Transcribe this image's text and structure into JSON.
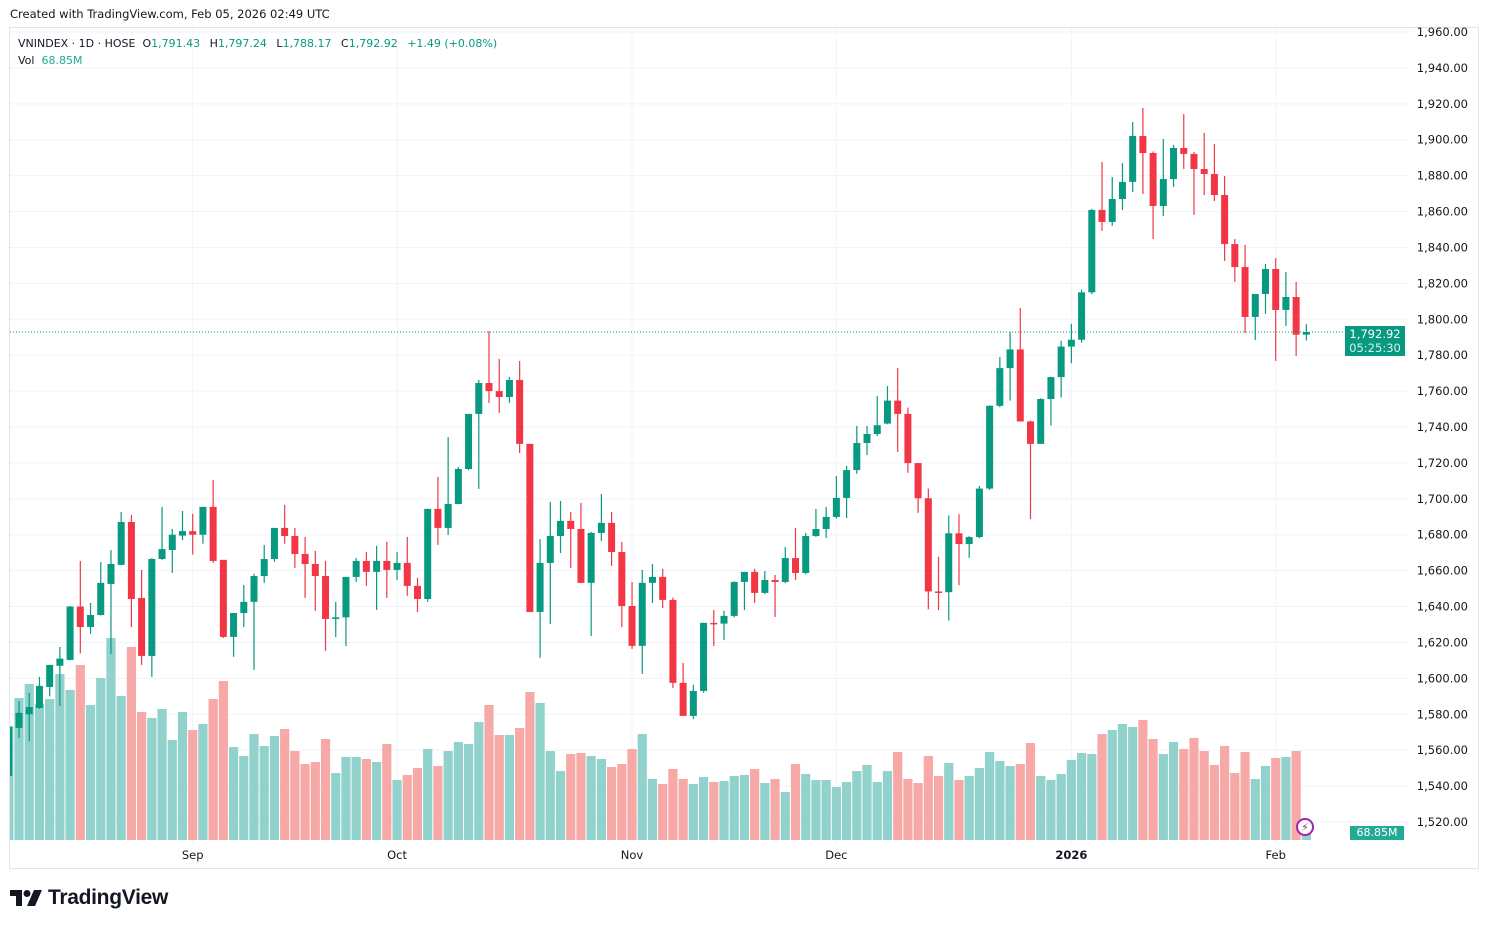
{
  "created_text": "Created with TradingView.com, Feb 05, 2026 02:49 UTC",
  "legend": {
    "symbol": "VNINDEX · 1D · HOSE",
    "o_label": "O",
    "o": "1,791.43",
    "h_label": "H",
    "h": "1,797.24",
    "l_label": "L",
    "l": "1,788.17",
    "c_label": "C",
    "c": "1,792.92",
    "change": "+1.49 (+0.08%)",
    "vol_label": "Vol",
    "vol": "68.85M"
  },
  "price_label": {
    "price": "1,792.92",
    "countdown": "05:25:30"
  },
  "volume_label": "68.85M",
  "logo_text": "TradingView",
  "colors": {
    "up": "#089981",
    "down": "#F23645",
    "vol_up": "#92d2cc",
    "vol_down": "#f7a9a7",
    "grid": "#f0f3fa",
    "alert_icon": "#9c27b0"
  },
  "chart_data": {
    "type": "candlestick",
    "title": "",
    "ylim": [
      1520,
      1960
    ],
    "grid": true,
    "y_ticks": [
      "1,960.00",
      "1,940.00",
      "1,920.00",
      "1,900.00",
      "1,880.00",
      "1,860.00",
      "1,840.00",
      "1,820.00",
      "1,800.00",
      "1,780.00",
      "1,760.00",
      "1,740.00",
      "1,720.00",
      "1,700.00",
      "1,680.00",
      "1,660.00",
      "1,640.00",
      "1,620.00",
      "1,600.00",
      "1,580.00",
      "1,560.00",
      "1,540.00",
      "1,520.00"
    ],
    "y_tick_values": [
      1960,
      1940,
      1920,
      1900,
      1880,
      1860,
      1840,
      1820,
      1800,
      1780,
      1760,
      1740,
      1720,
      1700,
      1680,
      1660,
      1640,
      1620,
      1600,
      1580,
      1560,
      1540,
      1520
    ],
    "x_ticks": [
      {
        "label": "Sep",
        "bar": 18,
        "bold": false
      },
      {
        "label": "Oct",
        "bar": 38,
        "bold": false
      },
      {
        "label": "Nov",
        "bar": 61,
        "bold": false
      },
      {
        "label": "Dec",
        "bar": 81,
        "bold": false
      },
      {
        "label": "2026",
        "bar": 104,
        "bold": true
      },
      {
        "label": "Feb",
        "bar": 124,
        "bold": false
      }
    ],
    "last_close": 1792.92,
    "volume_unit": "M",
    "ohlcv": [
      [
        1545.7,
        1574.0,
        1545.0,
        1573.0,
        1140
      ],
      [
        1572.4,
        1587.4,
        1566.8,
        1580.8,
        1420
      ],
      [
        1580.0,
        1592.0,
        1565.0,
        1584.0,
        1560
      ],
      [
        1583.5,
        1600.8,
        1583.0,
        1595.8,
        1360
      ],
      [
        1595.2,
        1607.5,
        1590.0,
        1607.5,
        1410
      ],
      [
        1607.0,
        1617.5,
        1584.6,
        1611.0,
        1660
      ],
      [
        1610.3,
        1640.3,
        1610.0,
        1640.0,
        1500
      ],
      [
        1640.0,
        1665.4,
        1614.0,
        1628.6,
        1750
      ],
      [
        1628.6,
        1642.0,
        1624.8,
        1635.3,
        1350
      ],
      [
        1635.3,
        1664.8,
        1635.0,
        1653.2,
        1620
      ],
      [
        1652.6,
        1671.5,
        1613.6,
        1663.7,
        2020
      ],
      [
        1663.2,
        1692.7,
        1663.0,
        1687.1,
        1440
      ],
      [
        1687.1,
        1691.0,
        1628.6,
        1644.2,
        1930
      ],
      [
        1644.8,
        1660.4,
        1607.5,
        1612.5,
        1280
      ],
      [
        1612.5,
        1667.0,
        1600.8,
        1666.5,
        1220
      ],
      [
        1666.5,
        1695.5,
        1666.0,
        1672.0,
        1310
      ],
      [
        1671.5,
        1683.2,
        1658.7,
        1680.0,
        1000
      ],
      [
        1679.5,
        1693.2,
        1677.0,
        1682.0,
        1280
      ],
      [
        1682.0,
        1691.6,
        1669.0,
        1680.0,
        1100
      ],
      [
        1680.0,
        1695.5,
        1675.0,
        1695.5,
        1160
      ],
      [
        1695.5,
        1710.5,
        1664.3,
        1665.4,
        1410
      ],
      [
        1666.0,
        1666.0,
        1622.5,
        1623.1,
        1590
      ],
      [
        1623.1,
        1636.4,
        1612.0,
        1636.4,
        930
      ],
      [
        1636.4,
        1652.0,
        1628.6,
        1642.6,
        840
      ],
      [
        1642.6,
        1658.2,
        1604.7,
        1657.0,
        1060
      ],
      [
        1657.0,
        1674.3,
        1653.2,
        1666.5,
        940
      ],
      [
        1666.5,
        1683.8,
        1665.0,
        1683.8,
        1040
      ],
      [
        1683.8,
        1696.6,
        1675.0,
        1679.3,
        1110
      ],
      [
        1679.3,
        1683.8,
        1661.5,
        1669.3,
        890
      ],
      [
        1669.3,
        1678.8,
        1644.8,
        1663.7,
        760
      ],
      [
        1663.7,
        1671.0,
        1637.6,
        1657.0,
        780
      ],
      [
        1657.0,
        1665.4,
        1615.3,
        1633.1,
        1010
      ],
      [
        1633.1,
        1642.6,
        1623.0,
        1634.0,
        670
      ],
      [
        1634.0,
        1656.5,
        1618.0,
        1656.5,
        830
      ],
      [
        1656.5,
        1667.0,
        1653.7,
        1665.4,
        830
      ],
      [
        1665.4,
        1670.4,
        1651.5,
        1659.3,
        810
      ],
      [
        1659.3,
        1673.8,
        1638.1,
        1665.4,
        780
      ],
      [
        1665.4,
        1676.0,
        1644.8,
        1660.4,
        960
      ],
      [
        1660.4,
        1670.4,
        1654.8,
        1664.3,
        600
      ],
      [
        1664.3,
        1678.8,
        1646.0,
        1651.5,
        650
      ],
      [
        1651.5,
        1656.0,
        1637.0,
        1644.2,
        720
      ],
      [
        1644.2,
        1694.4,
        1642.6,
        1694.4,
        910
      ],
      [
        1694.4,
        1712.2,
        1674.3,
        1683.8,
        740
      ],
      [
        1683.8,
        1734.4,
        1679.9,
        1697.1,
        890
      ],
      [
        1697.1,
        1717.7,
        1697.0,
        1716.6,
        980
      ],
      [
        1716.6,
        1747.3,
        1716.0,
        1747.3,
        960
      ],
      [
        1747.3,
        1766.2,
        1705.5,
        1764.5,
        1180
      ],
      [
        1764.5,
        1793.5,
        1753.4,
        1760.0,
        1350
      ],
      [
        1760.0,
        1777.9,
        1747.8,
        1756.7,
        1050
      ],
      [
        1756.7,
        1767.9,
        1753.4,
        1766.2,
        1050
      ],
      [
        1766.2,
        1776.8,
        1725.5,
        1730.6,
        1120
      ],
      [
        1730.6,
        1730.6,
        1636.8,
        1637.0,
        1480
      ],
      [
        1637.0,
        1677.6,
        1611.4,
        1664.3,
        1370
      ],
      [
        1664.3,
        1698.3,
        1630.3,
        1679.3,
        890
      ],
      [
        1679.3,
        1698.8,
        1669.8,
        1687.7,
        690
      ],
      [
        1687.7,
        1692.7,
        1661.5,
        1683.2,
        860
      ],
      [
        1683.2,
        1697.7,
        1653.0,
        1653.2,
        870
      ],
      [
        1653.2,
        1681.6,
        1623.6,
        1681.0,
        840
      ],
      [
        1681.0,
        1702.7,
        1676.5,
        1686.6,
        810
      ],
      [
        1686.6,
        1692.7,
        1662.6,
        1670.4,
        730
      ],
      [
        1670.4,
        1676.0,
        1628.6,
        1640.3,
        760
      ],
      [
        1640.3,
        1653.7,
        1616.4,
        1618.1,
        910
      ],
      [
        1618.1,
        1660.4,
        1602.5,
        1653.2,
        1060
      ],
      [
        1653.2,
        1663.7,
        1642.0,
        1656.5,
        610
      ],
      [
        1656.5,
        1661.0,
        1639.2,
        1643.7,
        560
      ],
      [
        1643.7,
        1645.0,
        1594.7,
        1597.5,
        710
      ],
      [
        1597.5,
        1608.6,
        1579.0,
        1579.1,
        610
      ],
      [
        1579.1,
        1596.4,
        1577.4,
        1593.0,
        560
      ],
      [
        1593.0,
        1631.0,
        1592.0,
        1630.9,
        630
      ],
      [
        1630.9,
        1638.1,
        1618.0,
        1630.5,
        580
      ],
      [
        1630.5,
        1637.6,
        1621.3,
        1634.8,
        590
      ],
      [
        1634.8,
        1654.0,
        1634.0,
        1653.7,
        640
      ],
      [
        1653.7,
        1659.3,
        1638.0,
        1659.3,
        650
      ],
      [
        1659.3,
        1661.0,
        1642.0,
        1647.6,
        710
      ],
      [
        1647.6,
        1659.8,
        1647.0,
        1654.8,
        570
      ],
      [
        1654.8,
        1657.6,
        1634.2,
        1653.7,
        610
      ],
      [
        1653.7,
        1673.2,
        1653.0,
        1667.0,
        480
      ],
      [
        1667.0,
        1683.8,
        1654.8,
        1658.7,
        760
      ],
      [
        1658.7,
        1681.0,
        1658.0,
        1679.3,
        660
      ],
      [
        1679.3,
        1694.4,
        1678.8,
        1683.2,
        600
      ],
      [
        1683.2,
        1695.5,
        1678.2,
        1689.9,
        600
      ],
      [
        1689.9,
        1712.7,
        1689.0,
        1700.5,
        530
      ],
      [
        1700.5,
        1718.3,
        1689.3,
        1716.0,
        580
      ],
      [
        1716.0,
        1740.6,
        1713.9,
        1731.1,
        690
      ],
      [
        1731.1,
        1740.6,
        1724.4,
        1736.1,
        750
      ],
      [
        1736.1,
        1757.3,
        1735.0,
        1741.0,
        580
      ],
      [
        1741.9,
        1762.8,
        1741.5,
        1754.7,
        690
      ],
      [
        1754.7,
        1772.8,
        1726.1,
        1747.3,
        880
      ],
      [
        1747.3,
        1750.8,
        1714.5,
        1719.9,
        610
      ],
      [
        1719.9,
        1719.9,
        1692.2,
        1700.3,
        570
      ],
      [
        1700.3,
        1705.7,
        1638.5,
        1648.4,
        840
      ],
      [
        1648.4,
        1667.7,
        1638.0,
        1648.0,
        640
      ],
      [
        1648.0,
        1690.8,
        1632.2,
        1680.8,
        770
      ],
      [
        1680.8,
        1691.4,
        1651.9,
        1674.8,
        600
      ],
      [
        1674.8,
        1679.2,
        1667.1,
        1678.7,
        640
      ],
      [
        1678.7,
        1707.2,
        1678.0,
        1705.7,
        720
      ],
      [
        1705.7,
        1752.0,
        1705.0,
        1751.8,
        880
      ],
      [
        1751.8,
        1779.0,
        1751.0,
        1772.8,
        790
      ],
      [
        1772.8,
        1792.9,
        1754.7,
        1783.2,
        740
      ],
      [
        1783.2,
        1806.2,
        1743.0,
        1743.1,
        760
      ],
      [
        1743.1,
        1743.5,
        1688.7,
        1730.6,
        970
      ],
      [
        1730.6,
        1756.0,
        1730.6,
        1755.6,
        640
      ],
      [
        1755.6,
        1768.0,
        1740.8,
        1767.8,
        600
      ],
      [
        1767.8,
        1788.0,
        1756.4,
        1784.8,
        660
      ],
      [
        1784.8,
        1797.5,
        1775.5,
        1788.6,
        800
      ],
      [
        1788.6,
        1816.5,
        1787.0,
        1815.0,
        870
      ],
      [
        1815.0,
        1861.5,
        1814.0,
        1860.9,
        860
      ],
      [
        1860.9,
        1887.6,
        1849.2,
        1854.2,
        1060
      ],
      [
        1854.2,
        1879.3,
        1852.0,
        1867.0,
        1100
      ],
      [
        1867.0,
        1887.0,
        1860.9,
        1876.5,
        1160
      ],
      [
        1876.5,
        1909.9,
        1870.9,
        1902.1,
        1130
      ],
      [
        1902.1,
        1917.7,
        1869.8,
        1892.6,
        1200
      ],
      [
        1892.6,
        1893.5,
        1844.7,
        1863.1,
        1010
      ],
      [
        1863.1,
        1900.4,
        1857.5,
        1878.1,
        860
      ],
      [
        1878.1,
        1897.1,
        1873.7,
        1895.4,
        980
      ],
      [
        1895.4,
        1914.3,
        1883.7,
        1892.1,
        910
      ],
      [
        1892.1,
        1893.2,
        1858.1,
        1883.7,
        1020
      ],
      [
        1883.7,
        1903.8,
        1869.2,
        1880.9,
        890
      ],
      [
        1880.9,
        1897.6,
        1865.9,
        1869.2,
        750
      ],
      [
        1869.2,
        1879.8,
        1832.5,
        1841.9,
        940
      ],
      [
        1841.9,
        1844.7,
        1820.8,
        1829.1,
        670
      ],
      [
        1829.1,
        1841.4,
        1792.4,
        1801.3,
        880
      ],
      [
        1801.3,
        1814.1,
        1788.5,
        1814.1,
        610
      ],
      [
        1814.1,
        1830.8,
        1803.0,
        1828.0,
        740
      ],
      [
        1828.0,
        1834.1,
        1776.8,
        1805.2,
        820
      ],
      [
        1805.2,
        1826.3,
        1796.3,
        1812.4,
        830
      ],
      [
        1812.4,
        1820.8,
        1779.6,
        1791.4,
        890
      ],
      [
        1791.43,
        1797.24,
        1788.17,
        1792.92,
        68.85
      ]
    ]
  }
}
